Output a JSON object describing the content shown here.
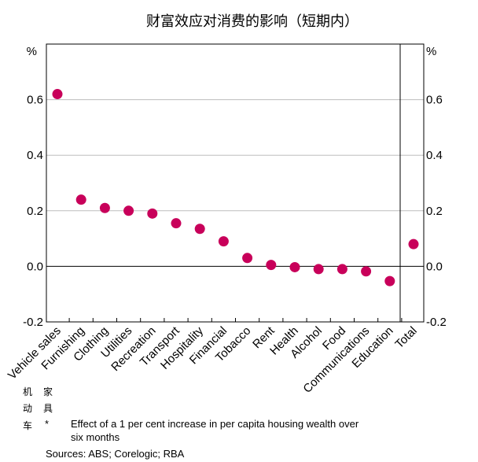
{
  "chart_data": {
    "type": "scatter",
    "title": "财富效应对消费的影响（短期内）",
    "y_unit_left": "%",
    "y_unit_right": "%",
    "ylim": [
      -0.2,
      0.8
    ],
    "yticks": [
      "0.6",
      "0.4",
      "0.2",
      "0.0",
      "-0.2"
    ],
    "ytick_values": [
      0.6,
      0.4,
      0.2,
      0.0,
      -0.2
    ],
    "categories": [
      "Vehicle sales",
      "Furnishing",
      "Clothing",
      "Utilities",
      "Recreation",
      "Transport",
      "Hospitality",
      "Financial",
      "Tobacco",
      "Rent",
      "Health",
      "Alcohol",
      "Food",
      "Communications",
      "Education",
      "Total"
    ],
    "values": [
      0.62,
      0.24,
      0.21,
      0.2,
      0.19,
      0.155,
      0.135,
      0.09,
      0.03,
      0.005,
      -0.003,
      -0.01,
      -0.01,
      -0.018,
      -0.053,
      0.08
    ],
    "point_color": "#c8005a",
    "grid": true
  },
  "footnote": {
    "side_chars_left": [
      "机",
      "动",
      "车"
    ],
    "side_chars_right": [
      "家",
      "具"
    ],
    "asterisk": "*",
    "line1": "Effect of a 1 per cent increase in per capita housing wealth over",
    "line2": "six months",
    "sources": "Sources:   ABS; Corelogic; RBA"
  }
}
